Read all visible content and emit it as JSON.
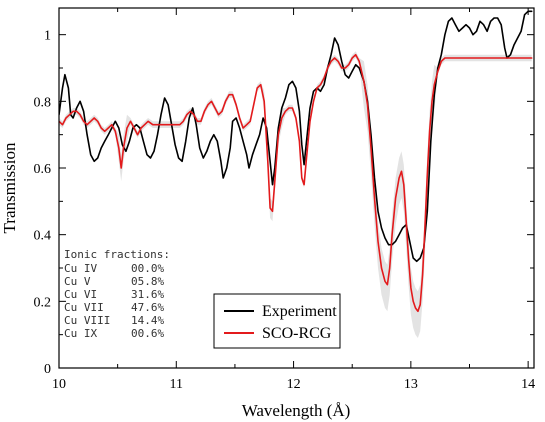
{
  "chart_data": {
    "type": "line",
    "xlabel": "Wavelength (Å)",
    "ylabel": "Transmission",
    "xlim": [
      10,
      14.05
    ],
    "ylim": [
      0,
      1.08
    ],
    "xticks": [
      10,
      11,
      12,
      13,
      14
    ],
    "yticks": [
      0,
      0.2,
      0.4,
      0.6,
      0.8,
      1
    ],
    "grid": false,
    "legend_position": "bottom-center",
    "series": [
      {
        "name": "Experiment",
        "color": "#000000",
        "points": [
          [
            10.0,
            0.76
          ],
          [
            10.03,
            0.84
          ],
          [
            10.05,
            0.88
          ],
          [
            10.08,
            0.84
          ],
          [
            10.1,
            0.76
          ],
          [
            10.12,
            0.75
          ],
          [
            10.15,
            0.78
          ],
          [
            10.18,
            0.8
          ],
          [
            10.21,
            0.77
          ],
          [
            10.24,
            0.7
          ],
          [
            10.27,
            0.64
          ],
          [
            10.3,
            0.62
          ],
          [
            10.33,
            0.63
          ],
          [
            10.36,
            0.66
          ],
          [
            10.39,
            0.68
          ],
          [
            10.42,
            0.7
          ],
          [
            10.45,
            0.72
          ],
          [
            10.48,
            0.74
          ],
          [
            10.51,
            0.72
          ],
          [
            10.54,
            0.67
          ],
          [
            10.57,
            0.65
          ],
          [
            10.6,
            0.68
          ],
          [
            10.63,
            0.72
          ],
          [
            10.66,
            0.73
          ],
          [
            10.69,
            0.72
          ],
          [
            10.72,
            0.68
          ],
          [
            10.75,
            0.64
          ],
          [
            10.78,
            0.63
          ],
          [
            10.81,
            0.65
          ],
          [
            10.84,
            0.7
          ],
          [
            10.87,
            0.76
          ],
          [
            10.9,
            0.81
          ],
          [
            10.93,
            0.79
          ],
          [
            10.96,
            0.73
          ],
          [
            10.99,
            0.67
          ],
          [
            11.02,
            0.63
          ],
          [
            11.05,
            0.62
          ],
          [
            11.08,
            0.68
          ],
          [
            11.11,
            0.75
          ],
          [
            11.14,
            0.78
          ],
          [
            11.17,
            0.73
          ],
          [
            11.2,
            0.66
          ],
          [
            11.23,
            0.63
          ],
          [
            11.26,
            0.65
          ],
          [
            11.29,
            0.68
          ],
          [
            11.32,
            0.7
          ],
          [
            11.35,
            0.68
          ],
          [
            11.38,
            0.62
          ],
          [
            11.4,
            0.57
          ],
          [
            11.43,
            0.6
          ],
          [
            11.46,
            0.66
          ],
          [
            11.48,
            0.74
          ],
          [
            11.51,
            0.75
          ],
          [
            11.54,
            0.72
          ],
          [
            11.57,
            0.68
          ],
          [
            11.6,
            0.64
          ],
          [
            11.62,
            0.6
          ],
          [
            11.65,
            0.64
          ],
          [
            11.68,
            0.67
          ],
          [
            11.71,
            0.7
          ],
          [
            11.74,
            0.75
          ],
          [
            11.77,
            0.72
          ],
          [
            11.8,
            0.62
          ],
          [
            11.82,
            0.55
          ],
          [
            11.84,
            0.6
          ],
          [
            11.87,
            0.72
          ],
          [
            11.9,
            0.78
          ],
          [
            11.93,
            0.81
          ],
          [
            11.96,
            0.85
          ],
          [
            11.99,
            0.86
          ],
          [
            12.02,
            0.84
          ],
          [
            12.05,
            0.77
          ],
          [
            12.07,
            0.67
          ],
          [
            12.09,
            0.61
          ],
          [
            12.11,
            0.68
          ],
          [
            12.14,
            0.78
          ],
          [
            12.17,
            0.83
          ],
          [
            12.2,
            0.84
          ],
          [
            12.23,
            0.83
          ],
          [
            12.26,
            0.85
          ],
          [
            12.29,
            0.9
          ],
          [
            12.32,
            0.94
          ],
          [
            12.35,
            0.99
          ],
          [
            12.38,
            0.97
          ],
          [
            12.41,
            0.92
          ],
          [
            12.44,
            0.88
          ],
          [
            12.47,
            0.87
          ],
          [
            12.5,
            0.89
          ],
          [
            12.53,
            0.91
          ],
          [
            12.56,
            0.9
          ],
          [
            12.6,
            0.86
          ],
          [
            12.63,
            0.8
          ],
          [
            12.66,
            0.7
          ],
          [
            12.69,
            0.57
          ],
          [
            12.72,
            0.47
          ],
          [
            12.75,
            0.42
          ],
          [
            12.78,
            0.39
          ],
          [
            12.81,
            0.37
          ],
          [
            12.84,
            0.37
          ],
          [
            12.87,
            0.38
          ],
          [
            12.9,
            0.4
          ],
          [
            12.93,
            0.42
          ],
          [
            12.96,
            0.43
          ],
          [
            12.99,
            0.38
          ],
          [
            13.02,
            0.33
          ],
          [
            13.05,
            0.32
          ],
          [
            13.08,
            0.33
          ],
          [
            13.11,
            0.36
          ],
          [
            13.14,
            0.47
          ],
          [
            13.17,
            0.68
          ],
          [
            13.2,
            0.82
          ],
          [
            13.23,
            0.9
          ],
          [
            13.26,
            0.94
          ],
          [
            13.29,
            1.0
          ],
          [
            13.32,
            1.04
          ],
          [
            13.35,
            1.05
          ],
          [
            13.38,
            1.03
          ],
          [
            13.41,
            1.01
          ],
          [
            13.44,
            1.02
          ],
          [
            13.47,
            1.03
          ],
          [
            13.5,
            1.02
          ],
          [
            13.53,
            1.0
          ],
          [
            13.56,
            1.01
          ],
          [
            13.59,
            1.04
          ],
          [
            13.62,
            1.03
          ],
          [
            13.65,
            1.01
          ],
          [
            13.68,
            1.04
          ],
          [
            13.71,
            1.05
          ],
          [
            13.74,
            1.05
          ],
          [
            13.77,
            1.03
          ],
          [
            13.8,
            0.96
          ],
          [
            13.82,
            0.93
          ],
          [
            13.85,
            0.94
          ],
          [
            13.88,
            0.97
          ],
          [
            13.91,
            0.99
          ],
          [
            13.94,
            1.01
          ],
          [
            13.97,
            1.06
          ],
          [
            14.0,
            1.07
          ],
          [
            14.03,
            1.07
          ]
        ]
      },
      {
        "name": "SCO-RCG",
        "color": "#e31a1c",
        "points": [
          [
            10.0,
            0.74
          ],
          [
            10.03,
            0.73
          ],
          [
            10.06,
            0.75
          ],
          [
            10.09,
            0.76
          ],
          [
            10.12,
            0.77
          ],
          [
            10.15,
            0.77
          ],
          [
            10.18,
            0.76
          ],
          [
            10.21,
            0.74
          ],
          [
            10.24,
            0.73
          ],
          [
            10.27,
            0.74
          ],
          [
            10.3,
            0.75
          ],
          [
            10.33,
            0.74
          ],
          [
            10.36,
            0.72
          ],
          [
            10.39,
            0.71
          ],
          [
            10.42,
            0.72
          ],
          [
            10.45,
            0.73
          ],
          [
            10.48,
            0.71
          ],
          [
            10.51,
            0.66
          ],
          [
            10.53,
            0.6
          ],
          [
            10.55,
            0.66
          ],
          [
            10.58,
            0.72
          ],
          [
            10.61,
            0.74
          ],
          [
            10.64,
            0.72
          ],
          [
            10.67,
            0.7
          ],
          [
            10.7,
            0.72
          ],
          [
            10.73,
            0.73
          ],
          [
            10.76,
            0.74
          ],
          [
            10.8,
            0.73
          ],
          [
            10.85,
            0.73
          ],
          [
            10.9,
            0.73
          ],
          [
            10.95,
            0.73
          ],
          [
            11.0,
            0.73
          ],
          [
            11.03,
            0.73
          ],
          [
            11.06,
            0.74
          ],
          [
            11.09,
            0.76
          ],
          [
            11.12,
            0.77
          ],
          [
            11.15,
            0.76
          ],
          [
            11.18,
            0.74
          ],
          [
            11.21,
            0.74
          ],
          [
            11.24,
            0.77
          ],
          [
            11.27,
            0.79
          ],
          [
            11.3,
            0.8
          ],
          [
            11.33,
            0.78
          ],
          [
            11.36,
            0.76
          ],
          [
            11.39,
            0.77
          ],
          [
            11.42,
            0.8
          ],
          [
            11.45,
            0.82
          ],
          [
            11.48,
            0.82
          ],
          [
            11.51,
            0.79
          ],
          [
            11.54,
            0.75
          ],
          [
            11.57,
            0.72
          ],
          [
            11.6,
            0.73
          ],
          [
            11.63,
            0.74
          ],
          [
            11.66,
            0.79
          ],
          [
            11.69,
            0.84
          ],
          [
            11.72,
            0.85
          ],
          [
            11.75,
            0.8
          ],
          [
            11.78,
            0.62
          ],
          [
            11.8,
            0.48
          ],
          [
            11.82,
            0.47
          ],
          [
            11.84,
            0.56
          ],
          [
            11.87,
            0.7
          ],
          [
            11.9,
            0.75
          ],
          [
            11.93,
            0.77
          ],
          [
            11.96,
            0.78
          ],
          [
            11.99,
            0.78
          ],
          [
            12.02,
            0.75
          ],
          [
            12.05,
            0.68
          ],
          [
            12.07,
            0.57
          ],
          [
            12.09,
            0.55
          ],
          [
            12.11,
            0.63
          ],
          [
            12.14,
            0.74
          ],
          [
            12.17,
            0.8
          ],
          [
            12.2,
            0.84
          ],
          [
            12.23,
            0.85
          ],
          [
            12.26,
            0.87
          ],
          [
            12.29,
            0.9
          ],
          [
            12.32,
            0.92
          ],
          [
            12.35,
            0.93
          ],
          [
            12.38,
            0.92
          ],
          [
            12.41,
            0.9
          ],
          [
            12.44,
            0.9
          ],
          [
            12.47,
            0.91
          ],
          [
            12.5,
            0.93
          ],
          [
            12.53,
            0.94
          ],
          [
            12.56,
            0.92
          ],
          [
            12.6,
            0.86
          ],
          [
            12.63,
            0.79
          ],
          [
            12.66,
            0.66
          ],
          [
            12.69,
            0.51
          ],
          [
            12.72,
            0.38
          ],
          [
            12.75,
            0.3
          ],
          [
            12.78,
            0.26
          ],
          [
            12.8,
            0.25
          ],
          [
            12.82,
            0.3
          ],
          [
            12.84,
            0.4
          ],
          [
            12.87,
            0.51
          ],
          [
            12.9,
            0.57
          ],
          [
            12.92,
            0.59
          ],
          [
            12.94,
            0.55
          ],
          [
            12.96,
            0.44
          ],
          [
            12.98,
            0.33
          ],
          [
            13.0,
            0.24
          ],
          [
            13.02,
            0.2
          ],
          [
            13.04,
            0.18
          ],
          [
            13.06,
            0.17
          ],
          [
            13.08,
            0.19
          ],
          [
            13.1,
            0.28
          ],
          [
            13.12,
            0.42
          ],
          [
            13.14,
            0.58
          ],
          [
            13.16,
            0.71
          ],
          [
            13.18,
            0.8
          ],
          [
            13.2,
            0.85
          ],
          [
            13.23,
            0.89
          ],
          [
            13.26,
            0.92
          ],
          [
            13.29,
            0.93
          ],
          [
            13.35,
            0.93
          ],
          [
            13.5,
            0.93
          ],
          [
            13.7,
            0.93
          ],
          [
            13.9,
            0.93
          ],
          [
            14.03,
            0.93
          ]
        ]
      }
    ],
    "annotation": {
      "title": "Ionic fractions:",
      "rows": [
        {
          "label": "Cu IV",
          "value": "00.0%"
        },
        {
          "label": "Cu V",
          "value": "05.8%"
        },
        {
          "label": "Cu VI",
          "value": "31.6%"
        },
        {
          "label": "Cu VII",
          "value": "47.6%"
        },
        {
          "label": "Cu VIII",
          "value": "14.4%"
        },
        {
          "label": "Cu IX",
          "value": "00.6%"
        }
      ]
    }
  }
}
